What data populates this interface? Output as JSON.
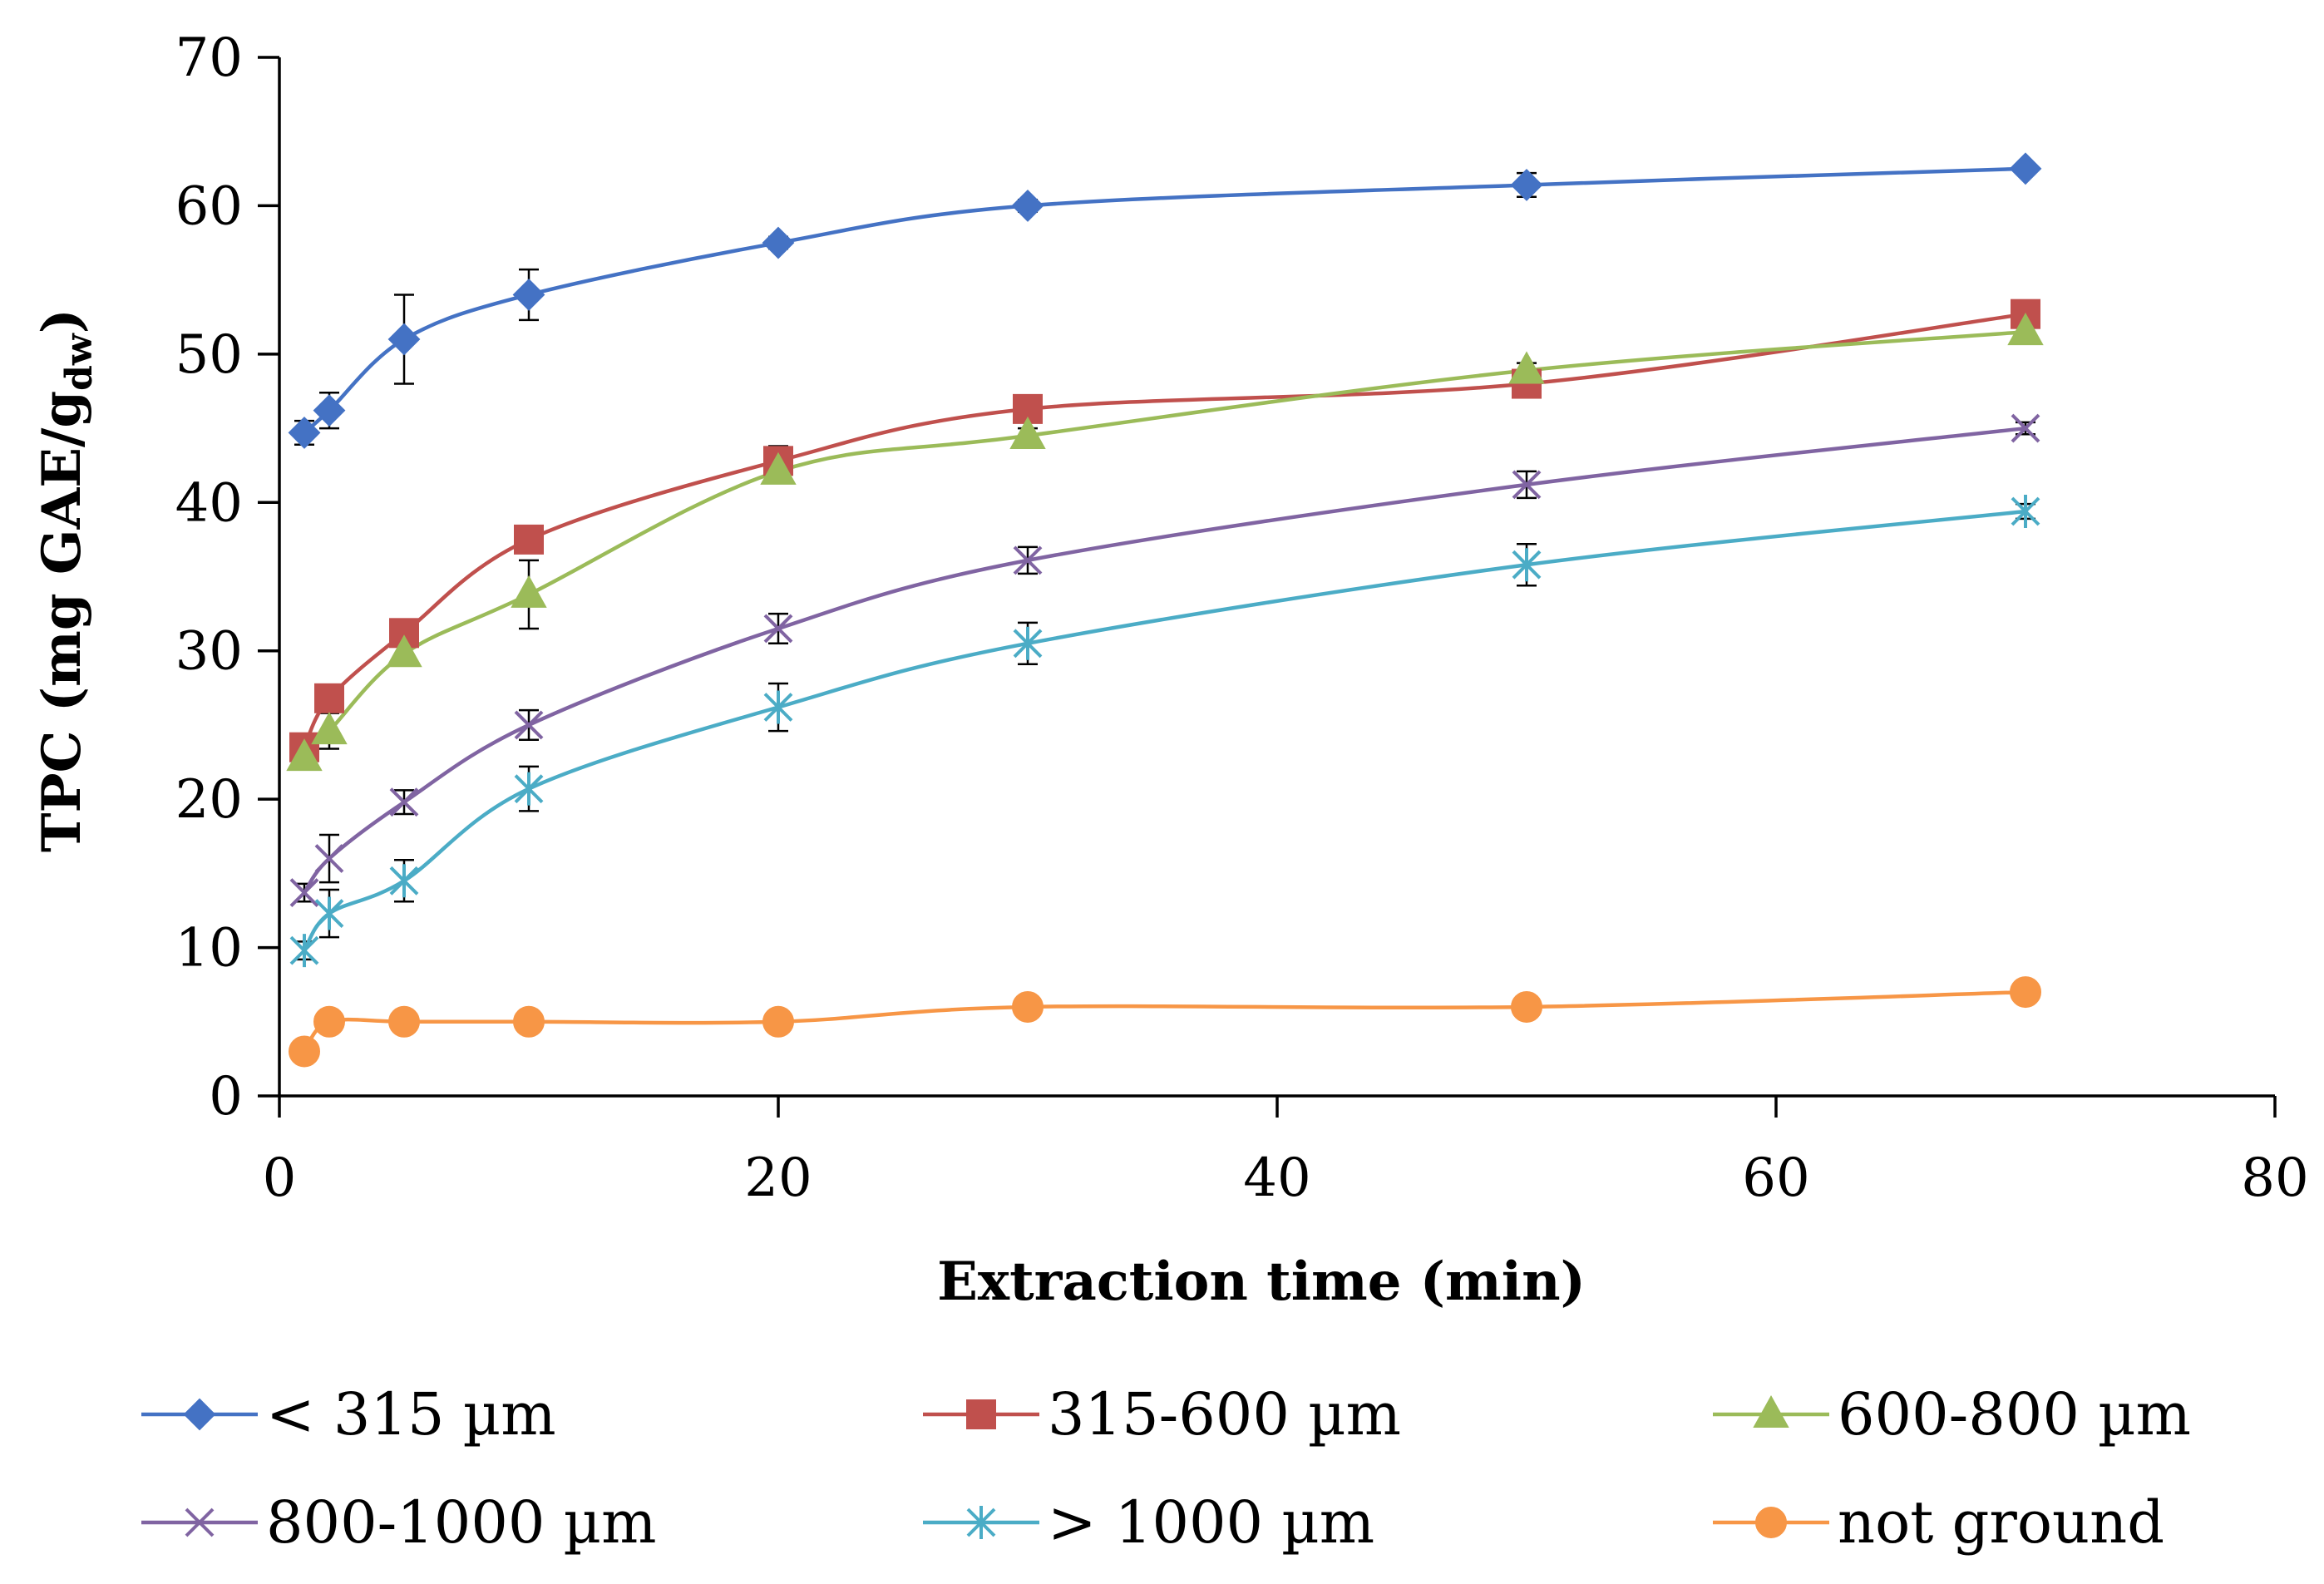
{
  "chart_data": {
    "type": "line",
    "title": "",
    "xlabel": "Extraction time (min)",
    "ylabel": {
      "main": "TPC (mg GAE/g",
      "subscript": "dw",
      "close": ")"
    },
    "xlim": [
      0,
      80
    ],
    "ylim": [
      0,
      70
    ],
    "xticks": [
      0,
      20,
      40,
      60,
      80
    ],
    "yticks": [
      0,
      10,
      20,
      30,
      40,
      50,
      60,
      70
    ],
    "grid": false,
    "legend_position": "bottom",
    "x": [
      1,
      2,
      5,
      10,
      20,
      30,
      50,
      70
    ],
    "series": [
      {
        "name": "< 315 µm",
        "color": "#4472C4",
        "marker": "diamond",
        "values": [
          44.7,
          46.2,
          51.0,
          54.0,
          57.5,
          60.0,
          61.4,
          62.5
        ],
        "errors": [
          0.8,
          1.2,
          3.0,
          1.7,
          0.4,
          0.4,
          0.8,
          0.3
        ]
      },
      {
        "name": "315-600 µm",
        "color": "#C0504D",
        "marker": "square",
        "values": [
          23.5,
          26.8,
          31.2,
          37.5,
          42.8,
          46.3,
          48.0,
          52.7
        ],
        "errors": [
          0.6,
          0.8,
          0.7,
          0.9,
          1.0,
          0.6,
          0.6,
          0.5
        ]
      },
      {
        "name": "600-800 µm",
        "color": "#9BBB59",
        "marker": "triangle",
        "values": [
          22.8,
          24.6,
          29.8,
          33.8,
          42.1,
          44.5,
          48.9,
          51.5
        ],
        "errors": [
          0.6,
          1.2,
          0.8,
          2.3,
          0.7,
          0.5,
          0.5,
          0.4
        ]
      },
      {
        "name": "800-1000 µm",
        "color": "#8064A2",
        "marker": "x",
        "values": [
          13.7,
          16.0,
          19.8,
          25.0,
          31.5,
          36.1,
          41.2,
          45.0
        ],
        "errors": [
          0.6,
          1.6,
          0.8,
          1.0,
          1.0,
          0.9,
          0.9,
          0.4
        ]
      },
      {
        "name": "> 1000 µm",
        "color": "#4BACC6",
        "marker": "star",
        "values": [
          9.8,
          12.3,
          14.5,
          20.7,
          26.2,
          30.5,
          35.8,
          39.4
        ],
        "errors": [
          0.6,
          1.6,
          1.4,
          1.5,
          1.6,
          1.4,
          1.4,
          0.5
        ]
      },
      {
        "name": "not ground",
        "color": "#F79646",
        "marker": "circle",
        "values": [
          3.0,
          5.0,
          5.0,
          5.0,
          5.0,
          6.0,
          6.0,
          7.0
        ],
        "errors": [
          0,
          0,
          0,
          0,
          0,
          0,
          0,
          0
        ]
      }
    ]
  }
}
